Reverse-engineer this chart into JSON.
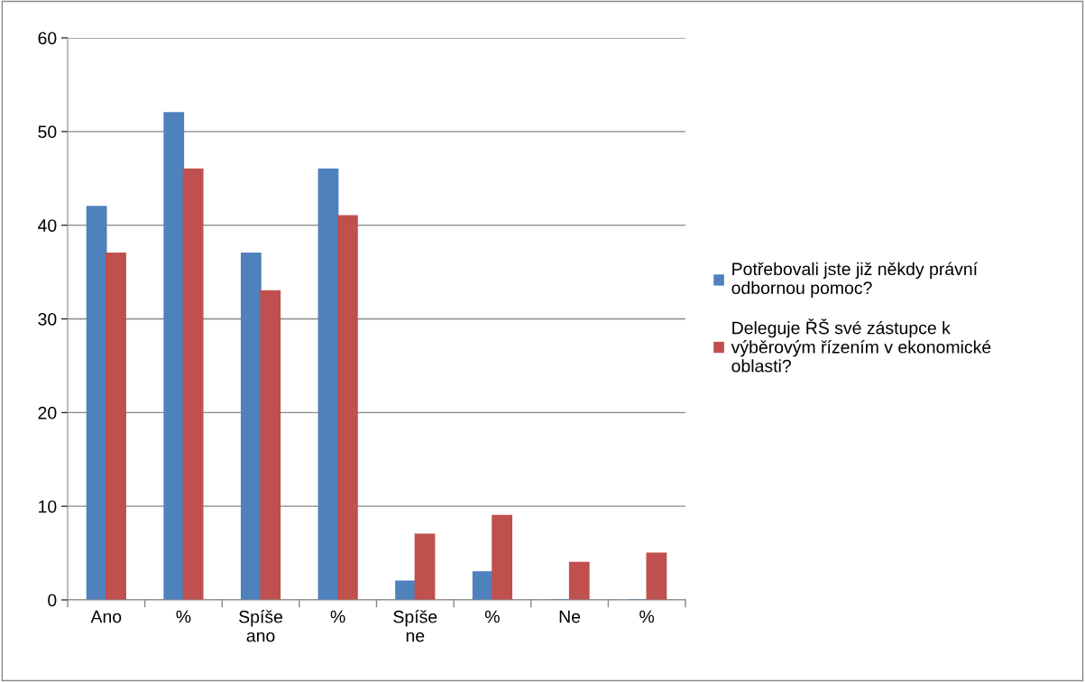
{
  "chart_data": {
    "type": "bar",
    "categories": [
      "Ano",
      "%",
      "Spíše ano",
      "%",
      "Spíše ne",
      "%",
      "Ne",
      "%"
    ],
    "series": [
      {
        "name": "Potřebovali jste již někdy právní odbornou pomoc?",
        "color": "#4f81bd",
        "values": [
          42,
          52,
          37,
          46,
          2,
          3,
          0,
          0
        ]
      },
      {
        "name": "Deleguje ŘŠ své zástupce k výběrovým řízením v ekonomické oblasti?",
        "color": "#c0504d",
        "values": [
          37,
          46,
          33,
          41,
          7,
          9,
          4,
          5
        ]
      }
    ],
    "ylim": [
      0,
      60
    ],
    "yticks": [
      0,
      10,
      20,
      30,
      40,
      50,
      60
    ],
    "grid": "y",
    "legend": "right"
  }
}
